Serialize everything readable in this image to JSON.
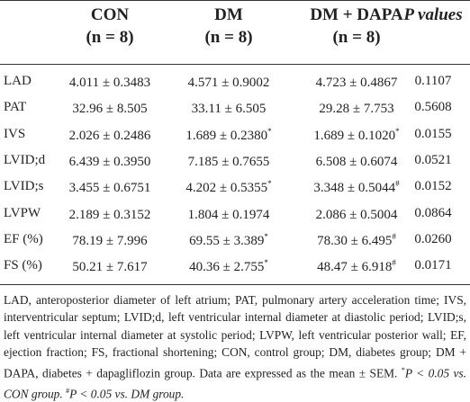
{
  "table": {
    "headers": [
      {
        "name": "CON",
        "sub": "(n = 8)"
      },
      {
        "name": "DM",
        "sub": "(n = 8)"
      },
      {
        "name": "DM + DAPA",
        "sub": "(n = 8)"
      },
      {
        "name": "P values",
        "sub": ""
      }
    ],
    "rows": [
      {
        "label": "LAD",
        "con": "4.011 ± 0.3483",
        "con_mark": "",
        "dm": "4.571 ± 0.9002",
        "dm_mark": "",
        "dapa": "4.723 ± 0.4867",
        "dapa_mark": "",
        "p": "0.1107"
      },
      {
        "label": "PAT",
        "con": "32.96 ± 8.505",
        "con_mark": "",
        "dm": "33.11 ± 6.505",
        "dm_mark": "",
        "dapa": "29.28 ± 7.753",
        "dapa_mark": "",
        "p": "0.5608"
      },
      {
        "label": "IVS",
        "con": "2.026 ± 0.2486",
        "con_mark": "",
        "dm": "1.689 ± 0.2380",
        "dm_mark": "*",
        "dapa": "1.689 ± 0.1020",
        "dapa_mark": "*",
        "p": "0.0155"
      },
      {
        "label": "LVID;d",
        "con": "6.439 ± 0.3950",
        "con_mark": "",
        "dm": "7.185 ± 0.7655",
        "dm_mark": "",
        "dapa": "6.508 ± 0.6074",
        "dapa_mark": "",
        "p": "0.0521"
      },
      {
        "label": "LVID;s",
        "con": "3.455 ± 0.6751",
        "con_mark": "",
        "dm": "4.202 ± 0.5355",
        "dm_mark": "*",
        "dapa": "3.348 ± 0.5044",
        "dapa_mark": "#",
        "p": "0.0152"
      },
      {
        "label": "LVPW",
        "con": "2.189 ± 0.3152",
        "con_mark": "",
        "dm": "1.804 ± 0.1974",
        "dm_mark": "",
        "dapa": "2.086 ± 0.5004",
        "dapa_mark": "",
        "p": "0.0864"
      },
      {
        "label": "EF (%)",
        "con": "78.19 ± 7.996",
        "con_mark": "",
        "dm": "69.55 ± 3.389",
        "dm_mark": "*",
        "dapa": "78.30 ± 6.495",
        "dapa_mark": "#",
        "p": "0.0260"
      },
      {
        "label": "FS (%)",
        "con": "50.21 ± 7.617",
        "con_mark": "",
        "dm": "40.36 ± 2.755",
        "dm_mark": "*",
        "dapa": "48.47 ± 6.918",
        "dapa_mark": "#",
        "p": "0.0171"
      }
    ]
  },
  "footnote": {
    "text": "LAD, anteroposterior diameter of left atrium; PAT, pulmonary artery acceleration time; IVS, interventricular septum; LVID;d, left ventricular internal diameter at diastolic period; LVID;s, left ventricular internal diameter at systolic period; LVPW, left ventricular posterior wall; EF, ejection fraction; FS, fractional shortening; CON, control group; DM, diabetes group; DM + DAPA, diabetes + dapagliflozin group. Data are expressed as the mean ± SEM.",
    "mark1": "*",
    "sig1": "P < 0.05 vs. CON group.",
    "mark2": "#",
    "sig2": "P < 0.05 vs. DM group."
  }
}
